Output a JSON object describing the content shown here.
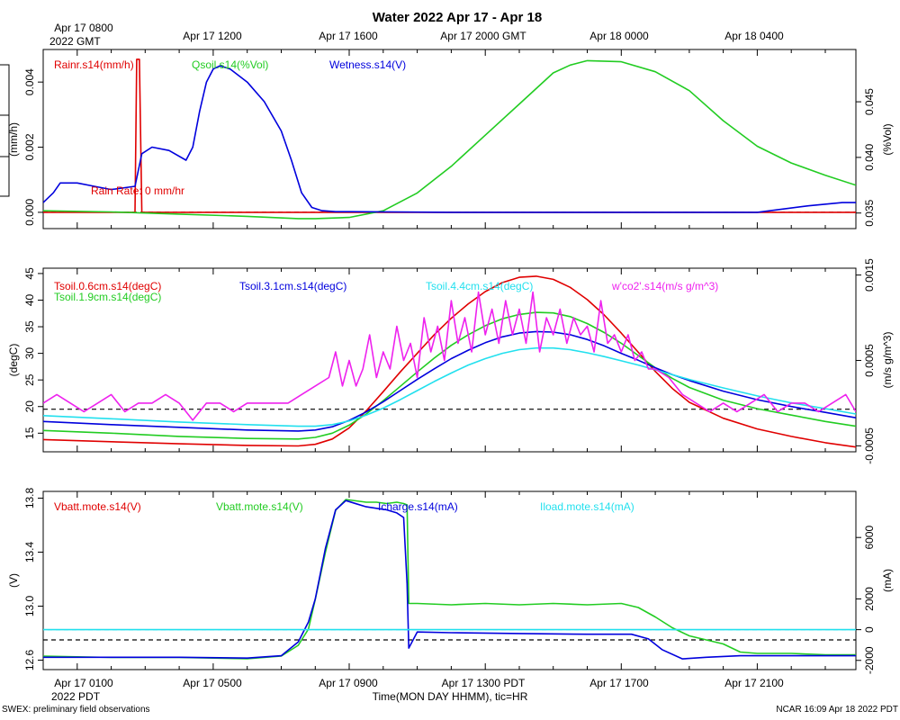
{
  "title": "Water 2022 Apr 17 - Apr 18",
  "top_axis": {
    "labels": [
      "Apr 17 0800",
      "Apr 17 1200",
      "Apr 17 1600",
      "Apr 17 2000 GMT",
      "Apr 18 0000",
      "Apr 18 0400"
    ],
    "corner": "2022 GMT"
  },
  "bottom_axis": {
    "labels": [
      "Apr 17 0100",
      "Apr 17 0500",
      "Apr 17 0900",
      "Apr 17 1300 PDT",
      "Apr 17 1700",
      "Apr 17 2100"
    ],
    "corner": "2022 PDT",
    "xlabel": "Time(MON DAY HHMM), tic=HR"
  },
  "footer": {
    "left": "SWEX: preliminary field observations",
    "right": "NCAR 16:09 Apr 18 2022 PDT"
  },
  "colors": {
    "red": "#e00000",
    "green": "#22cc22",
    "blue": "#0000dd",
    "cyan": "#22e0ee",
    "magenta": "#ee22ee"
  },
  "chart_data": [
    {
      "type": "line",
      "panel": "water",
      "x_units": "hours since Apr 17 0000 PDT",
      "xlim": [
        0.0,
        23.9
      ],
      "ylabel_left": "(mm/h)",
      "ylabel_right": "(%Vol)",
      "ylim_left": [
        -0.0005,
        0.005
      ],
      "ylim_right": [
        0.0336,
        0.0497
      ],
      "yticks_left": [
        "0.000",
        "0.002",
        "0.004"
      ],
      "yticks_right": [
        "0.035",
        "0.040",
        "0.045"
      ],
      "annotation": "Rain Rate: 0 mm/hr",
      "series": [
        {
          "name": "Rainr.s14(mm/h)",
          "color": "red",
          "axis": "left",
          "x": [
            0,
            2.7,
            2.75,
            2.83,
            2.9,
            23.9
          ],
          "y": [
            0,
            0,
            0.0047,
            0.0047,
            0,
            0
          ]
        },
        {
          "name": "Qsoil.s14(%Vol)",
          "color": "green",
          "axis": "right",
          "x": [
            0,
            2,
            4,
            6,
            7.5,
            8,
            9,
            10,
            11,
            12,
            13,
            14,
            15,
            15.5,
            16,
            17,
            18,
            19,
            20,
            21,
            22,
            23,
            23.9
          ],
          "y": [
            0.0352,
            0.0351,
            0.0349,
            0.0347,
            0.0345,
            0.0345,
            0.0346,
            0.0352,
            0.0368,
            0.0392,
            0.042,
            0.0448,
            0.0476,
            0.0483,
            0.0487,
            0.0486,
            0.0477,
            0.046,
            0.0433,
            0.041,
            0.0395,
            0.0384,
            0.0375
          ]
        },
        {
          "name": "Wetness.s14(V)",
          "color": "blue",
          "axis": "left",
          "x": [
            0,
            0.3,
            0.5,
            1,
            1.5,
            2,
            2.7,
            2.9,
            3.2,
            3.7,
            4.2,
            4.4,
            4.6,
            4.8,
            5,
            5.2,
            5.5,
            6,
            6.5,
            7,
            7.3,
            7.6,
            7.9,
            8.2,
            8.6,
            9,
            12,
            15,
            18,
            21,
            22.5,
            23.5,
            23.9
          ],
          "y": [
            0.0003,
            0.0006,
            0.0009,
            0.0009,
            0.0008,
            0.0007,
            0.0008,
            0.0018,
            0.002,
            0.0019,
            0.0016,
            0.002,
            0.0031,
            0.004,
            0.0044,
            0.0045,
            0.0044,
            0.004,
            0.0034,
            0.0025,
            0.0016,
            0.0006,
            0.00015,
            5e-05,
            2e-05,
            2e-05,
            0.0,
            0.0,
            0.0,
            0.0,
            0.0002,
            0.0003,
            0.0003
          ]
        }
      ]
    },
    {
      "type": "line",
      "panel": "temperature",
      "x_units": "hours since Apr 17 0000 PDT",
      "xlim": [
        0.0,
        23.9
      ],
      "ylabel_left": "(degC)",
      "ylabel_right": "(m/s g/m^3)",
      "ylim_left": [
        11.5,
        46
      ],
      "ylim_right": [
        -0.00057,
        0.00158
      ],
      "yticks_left": [
        "15",
        "20",
        "25",
        "30",
        "35",
        "40",
        "45"
      ],
      "yticks_right": [
        "-0.0005",
        "0.0005",
        "0.0015"
      ],
      "reference_line": 19.5,
      "series": [
        {
          "name": "Tsoil.0.6cm.s14(degC)",
          "color": "red",
          "axis": "left",
          "x": [
            0,
            2,
            4,
            6,
            7.5,
            8,
            8.5,
            9,
            9.5,
            10,
            10.5,
            11,
            11.5,
            12,
            12.5,
            13,
            13.5,
            14,
            14.5,
            15,
            15.5,
            16,
            16.5,
            17,
            17.5,
            18,
            18.5,
            19,
            20,
            21,
            22,
            23,
            23.9
          ],
          "y": [
            13.8,
            13.4,
            13.0,
            12.7,
            12.6,
            12.9,
            13.9,
            16.0,
            19.2,
            22.8,
            26.5,
            30.0,
            33.5,
            36.6,
            39.3,
            41.6,
            43.3,
            44.3,
            44.5,
            43.9,
            42.4,
            40.1,
            37.2,
            33.8,
            30.2,
            26.6,
            23.4,
            20.8,
            17.8,
            15.8,
            14.4,
            13.2,
            12.4
          ]
        },
        {
          "name": "Tsoil.1.9cm.s14(degC)",
          "color": "green",
          "axis": "left",
          "x": [
            0,
            2,
            4,
            6,
            7.5,
            8,
            8.5,
            9,
            9.5,
            10,
            10.5,
            11,
            11.5,
            12,
            12.5,
            13,
            13.5,
            14,
            14.5,
            15,
            15.5,
            16,
            16.5,
            17,
            17.5,
            18,
            18.5,
            19,
            20,
            21,
            22,
            23,
            23.9
          ],
          "y": [
            15.5,
            15.0,
            14.4,
            14.0,
            13.9,
            14.2,
            15.0,
            16.5,
            18.6,
            21.1,
            23.8,
            26.5,
            29.1,
            31.5,
            33.5,
            35.2,
            36.5,
            37.3,
            37.7,
            37.6,
            36.9,
            35.6,
            33.9,
            31.9,
            29.6,
            27.3,
            25.3,
            23.6,
            21.2,
            19.6,
            18.4,
            17.2,
            16.3
          ]
        },
        {
          "name": "Tsoil.3.1cm.s14(degC)",
          "color": "blue",
          "axis": "left",
          "x": [
            0,
            2,
            4,
            6,
            7.5,
            8,
            8.5,
            9,
            9.5,
            10,
            10.5,
            11,
            11.5,
            12,
            12.5,
            13,
            13.5,
            14,
            14.5,
            15,
            15.5,
            16,
            16.5,
            17,
            17.5,
            18,
            18.5,
            19,
            20,
            21,
            22,
            23,
            23.9
          ],
          "y": [
            17.2,
            16.6,
            16.1,
            15.6,
            15.4,
            15.6,
            16.2,
            17.4,
            19.0,
            20.9,
            23.0,
            25.1,
            27.1,
            29.0,
            30.6,
            32.0,
            33.1,
            33.8,
            34.1,
            34.0,
            33.5,
            32.6,
            31.4,
            30.0,
            28.7,
            27.3,
            26.0,
            24.9,
            22.9,
            21.3,
            20.0,
            18.9,
            17.9
          ]
        },
        {
          "name": "Tsoil.4.4cm.s14(degC)",
          "color": "cyan",
          "axis": "left",
          "x": [
            0,
            2,
            4,
            6,
            7.5,
            8,
            8.5,
            9,
            9.5,
            10,
            10.5,
            11,
            11.5,
            12,
            12.5,
            13,
            13.5,
            14,
            14.5,
            15,
            15.5,
            16,
            16.5,
            17,
            17.5,
            18,
            18.5,
            19,
            20,
            21,
            22,
            23,
            23.9
          ],
          "y": [
            18.3,
            17.7,
            17.1,
            16.6,
            16.3,
            16.3,
            16.6,
            17.3,
            18.4,
            19.7,
            21.3,
            23.0,
            24.7,
            26.3,
            27.8,
            29.0,
            30.0,
            30.7,
            31.0,
            31.0,
            30.7,
            30.1,
            29.4,
            28.6,
            27.8,
            26.9,
            26.0,
            25.1,
            23.5,
            22.0,
            20.7,
            19.6,
            18.6
          ]
        },
        {
          "name": "w'co2'.s14(m/s g/m^3)",
          "color": "magenta",
          "axis": "right",
          "x": [
            0,
            0.4,
            0.8,
            1.2,
            1.6,
            2.0,
            2.4,
            2.8,
            3.2,
            3.6,
            4.0,
            4.4,
            4.8,
            5.2,
            5.6,
            6.0,
            6.4,
            6.8,
            7.2,
            7.6,
            8.0,
            8.4,
            8.6,
            8.8,
            9.0,
            9.2,
            9.4,
            9.6,
            9.8,
            10.0,
            10.2,
            10.4,
            10.6,
            10.8,
            11.0,
            11.2,
            11.4,
            11.6,
            11.8,
            12.0,
            12.2,
            12.4,
            12.6,
            12.8,
            13.0,
            13.2,
            13.4,
            13.6,
            13.8,
            14.0,
            14.2,
            14.4,
            14.6,
            14.8,
            15.0,
            15.2,
            15.4,
            15.6,
            15.8,
            16.0,
            16.2,
            16.4,
            16.6,
            16.8,
            17.0,
            17.2,
            17.4,
            17.6,
            17.8,
            18.0,
            18.4,
            18.8,
            19.2,
            19.6,
            20.0,
            20.4,
            20.8,
            21.2,
            21.6,
            22.0,
            22.4,
            22.8,
            23.2,
            23.6,
            23.9
          ],
          "y": [
            0.0,
            0.0001,
            0.0,
            -0.0001,
            0.0,
            0.0001,
            -0.0001,
            0.0,
            0.0,
            0.0001,
            0.0,
            -0.0002,
            0.0,
            0.0,
            -0.0001,
            0.0,
            0.0,
            0.0,
            0.0,
            0.0001,
            0.0002,
            0.0003,
            0.0006,
            0.0002,
            0.0005,
            0.0002,
            0.0004,
            0.0008,
            0.0003,
            0.0006,
            0.0004,
            0.0009,
            0.0005,
            0.0007,
            0.0003,
            0.001,
            0.0006,
            0.0009,
            0.0005,
            0.0012,
            0.0007,
            0.001,
            0.0006,
            0.0013,
            0.0008,
            0.0011,
            0.0007,
            0.0012,
            0.0008,
            0.0011,
            0.0007,
            0.0013,
            0.0006,
            0.001,
            0.0008,
            0.0011,
            0.0007,
            0.001,
            0.0008,
            0.0009,
            0.0006,
            0.0012,
            0.0007,
            0.0008,
            0.0006,
            0.0008,
            0.0005,
            0.0006,
            0.0004,
            0.0004,
            0.0003,
            0.0001,
            0.0,
            -0.0001,
            0.0,
            -0.0001,
            0.0,
            0.0001,
            -0.0001,
            0.0,
            0.0,
            -0.0001,
            0.0,
            0.0001,
            -0.0001
          ]
        }
      ]
    },
    {
      "type": "line",
      "panel": "power",
      "x_units": "hours since Apr 17 0000 PDT",
      "xlim": [
        0.0,
        23.9
      ],
      "ylabel_left": "(V)",
      "ylabel_right": "(mA)",
      "ylim_left": [
        12.53,
        13.85
      ],
      "ylim_right": [
        -2600,
        9000
      ],
      "yticks_left": [
        "12.6",
        "13.0",
        "13.4",
        "13.8"
      ],
      "yticks_right": [
        "-2000",
        "0",
        "2000",
        "6000"
      ],
      "reference_line": 12.75,
      "series": [
        {
          "name": "Vbatt.mote.s14(V)",
          "color": "red",
          "axis": "left",
          "x": [],
          "y": []
        },
        {
          "name": "Vbatt.mote.s14(V)",
          "color": "green",
          "axis": "left",
          "x": [
            0,
            2,
            4,
            6,
            7.0,
            7.5,
            7.8,
            8.0,
            8.3,
            8.6,
            8.9,
            9.2,
            9.5,
            9.8,
            10.1,
            10.4,
            10.6,
            10.7,
            10.75,
            11,
            12,
            13,
            14,
            15,
            16,
            17,
            17.5,
            18,
            18.5,
            19,
            19.5,
            20,
            20.5,
            21,
            22,
            23,
            23.9
          ],
          "y": [
            12.63,
            12.62,
            12.62,
            12.61,
            12.63,
            12.71,
            12.83,
            13.05,
            13.4,
            13.71,
            13.79,
            13.78,
            13.77,
            13.77,
            13.76,
            13.77,
            13.76,
            13.75,
            13.02,
            13.02,
            13.01,
            13.02,
            13.01,
            13.02,
            13.01,
            13.02,
            12.99,
            12.92,
            12.84,
            12.78,
            12.75,
            12.72,
            12.66,
            12.65,
            12.65,
            12.64,
            12.64
          ]
        },
        {
          "name": "Icharge.s14(mA)",
          "color": "blue",
          "axis": "right",
          "x": [
            0,
            2,
            4,
            6,
            7.0,
            7.5,
            7.8,
            8.0,
            8.3,
            8.6,
            8.9,
            9.2,
            9.5,
            9.8,
            10.1,
            10.4,
            10.6,
            10.7,
            10.75,
            11,
            12,
            14,
            16,
            17.3,
            17.8,
            18.2,
            18.8,
            19.5,
            20.5,
            22,
            23.9
          ],
          "y": [
            -1800,
            -1800,
            -1800,
            -1850,
            -1700,
            -800,
            500,
            2000,
            5300,
            7800,
            8400,
            8200,
            8000,
            7900,
            7800,
            7600,
            7300,
            3000,
            -1200,
            -150,
            -200,
            -250,
            -300,
            -300,
            -600,
            -1300,
            -1900,
            -1800,
            -1700,
            -1700,
            -1700
          ]
        },
        {
          "name": "Iload.mote.s14(mA)",
          "color": "cyan",
          "axis": "right",
          "x": [
            0,
            23.9
          ],
          "y": [
            0,
            0
          ]
        }
      ]
    }
  ]
}
